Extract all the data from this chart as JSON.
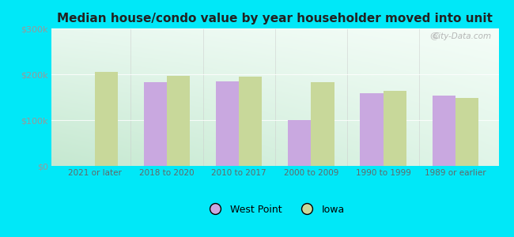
{
  "title": "Median house/condo value by year householder moved into unit",
  "categories": [
    "2021 or later",
    "2018 to 2020",
    "2010 to 2017",
    "2000 to 2009",
    "1990 to 1999",
    "1989 or earlier"
  ],
  "west_point": [
    null,
    183000,
    185000,
    100000,
    158000,
    153000
  ],
  "iowa": [
    205000,
    197000,
    195000,
    183000,
    163000,
    148000
  ],
  "west_point_color": "#c9a8e0",
  "iowa_color": "#c8d89a",
  "background_outer": "#00e8f8",
  "ylim": [
    0,
    300000
  ],
  "yticks": [
    0,
    100000,
    200000,
    300000
  ],
  "ytick_labels": [
    "$0",
    "$100k",
    "$200k",
    "$300k"
  ],
  "bar_width": 0.32,
  "legend_labels": [
    "West Point",
    "Iowa"
  ],
  "watermark": "City-Data.com",
  "gradient_top_left": "#e8f8ef",
  "gradient_top_right": "#f5fdf8",
  "gradient_bottom_left": "#c5e8d0",
  "gradient_bottom_right": "#e0f5e8"
}
